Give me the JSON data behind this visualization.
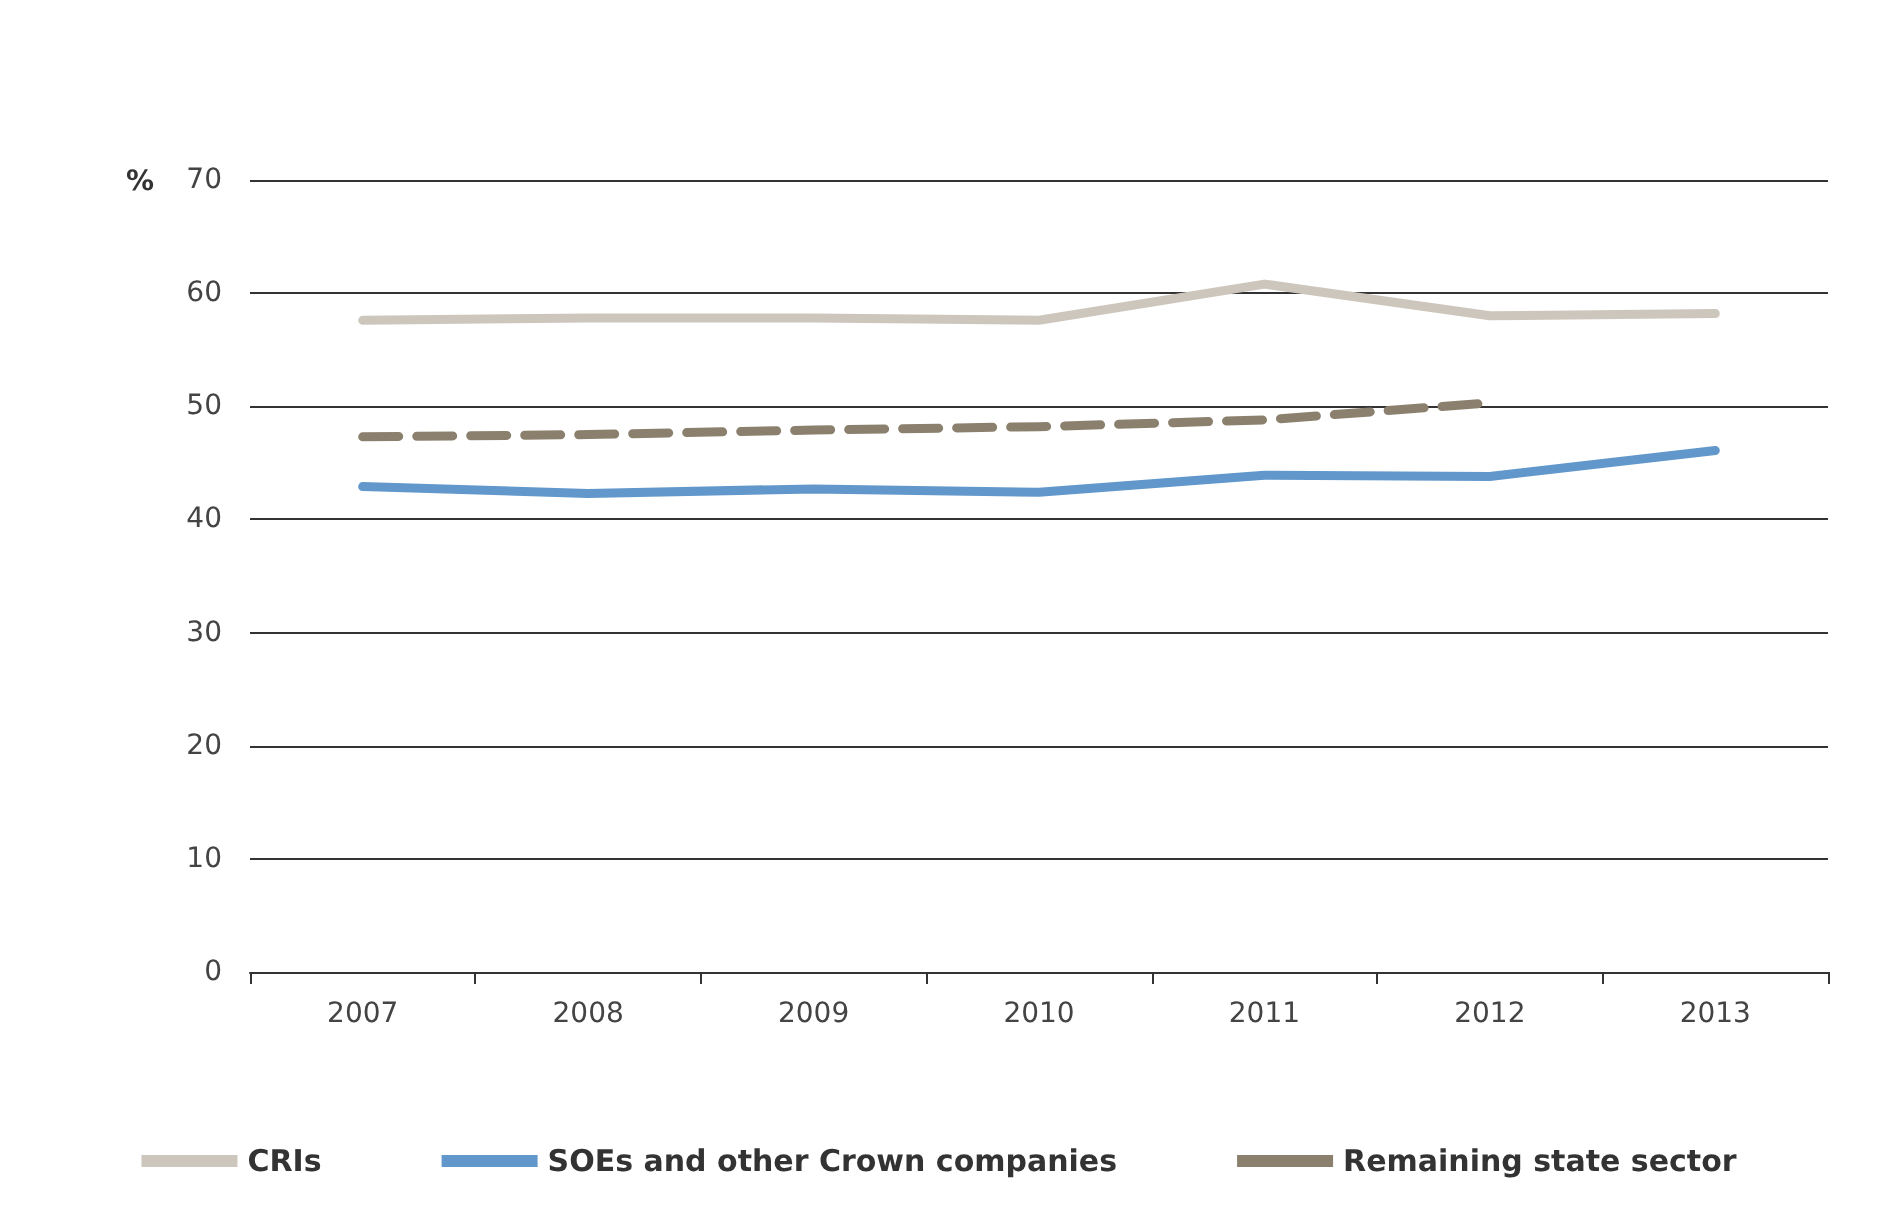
{
  "chart_data": {
    "type": "line",
    "ylabel": "%",
    "categories": [
      "2007",
      "2008",
      "2009",
      "2010",
      "2011",
      "2012",
      "2013"
    ],
    "series": [
      {
        "name": "CRIs",
        "color": "#cdc6bc",
        "values": [
          57.6,
          57.8,
          57.8,
          57.6,
          60.8,
          58.0,
          58.2
        ]
      },
      {
        "name": "SOEs and other Crown companies",
        "color": "#6197cb",
        "values": [
          42.9,
          42.3,
          42.7,
          42.4,
          43.9,
          43.8,
          46.1
        ]
      },
      {
        "name": "Remaining state sector",
        "color": "#8b806e",
        "line_style": "dashed",
        "values": [
          47.3,
          47.5,
          47.9,
          48.2,
          48.8,
          50.3,
          null
        ]
      }
    ],
    "ylim": [
      0,
      70
    ],
    "yticks": [
      0,
      10,
      20,
      30,
      40,
      50,
      60,
      70
    ],
    "grid": "y",
    "legend": "bottom",
    "marker": "none"
  }
}
